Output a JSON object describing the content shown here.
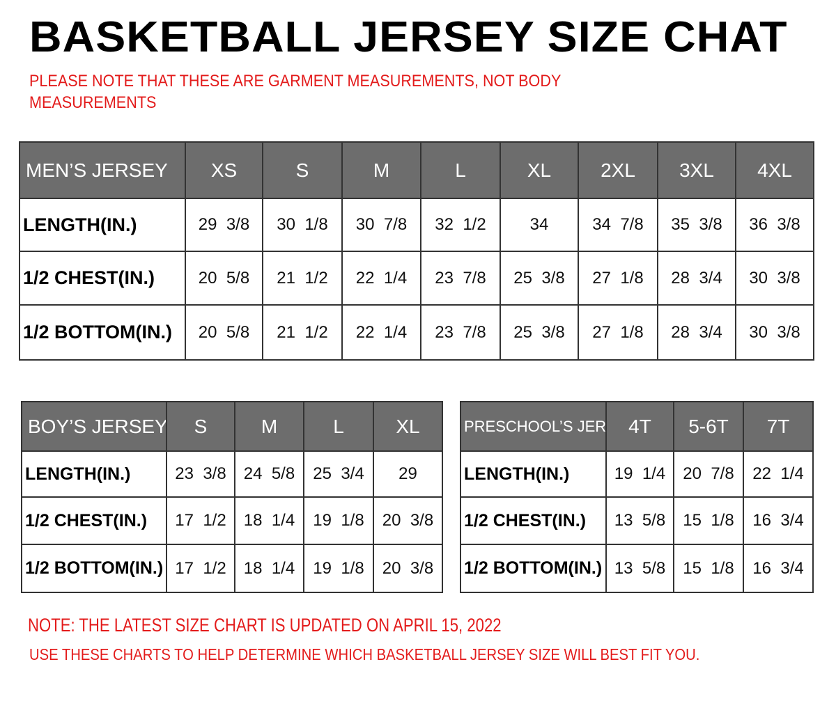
{
  "title": "BASKETBALL JERSEY SIZE CHAT",
  "header_note_line1": "PLEASE NOTE THAT THESE ARE GARMENT MEASUREMENTS, NOT BODY",
  "header_note_line2": "MEASUREMENTS",
  "colors": {
    "header_bg": "#6d6d6d",
    "note_red": "#e31b1b"
  },
  "tables": {
    "mens": {
      "label": "MEN’S JERSEY",
      "sizes": [
        "XS",
        "S",
        "M",
        "L",
        "XL",
        "2XL",
        "3XL",
        "4XL"
      ],
      "rows": [
        {
          "label": "LENGTH(IN.)",
          "values": [
            "29  3/8",
            "30  1/8",
            "30  7/8",
            "32  1/2",
            "34",
            "34  7/8",
            "35  3/8",
            "36  3/8"
          ]
        },
        {
          "label": "1/2  CHEST(IN.)",
          "values": [
            "20  5/8",
            "21  1/2",
            "22  1/4",
            "23  7/8",
            "25  3/8",
            "27  1/8",
            "28  3/4",
            "30  3/8"
          ]
        },
        {
          "label": "1/2  BOTTOM(IN.)",
          "values": [
            "20  5/8",
            "21  1/2",
            "22  1/4",
            "23  7/8",
            "25  3/8",
            "27  1/8",
            "28  3/4",
            "30  3/8"
          ]
        }
      ]
    },
    "boys": {
      "label": "BOY’S JERSEY",
      "sizes": [
        "S",
        "M",
        "L",
        "XL"
      ],
      "rows": [
        {
          "label": "LENGTH(IN.)",
          "values": [
            "23  3/8",
            "24  5/8",
            "25  3/4",
            "29"
          ]
        },
        {
          "label": "1/2  CHEST(IN.)",
          "values": [
            "17  1/2",
            "18  1/4",
            "19  1/8",
            "20  3/8"
          ]
        },
        {
          "label": "1/2  BOTTOM(IN.)",
          "values": [
            "17  1/2",
            "18  1/4",
            "19  1/8",
            "20  3/8"
          ]
        }
      ]
    },
    "pre": {
      "label": "PRESCHOOL’S JERSEY",
      "sizes": [
        "4T",
        "5-6T",
        "7T"
      ],
      "rows": [
        {
          "label": "LENGTH(IN.)",
          "values": [
            "19  1/4",
            "20  7/8",
            "22  1/4"
          ]
        },
        {
          "label": "1/2  CHEST(IN.)",
          "values": [
            "13  5/8",
            "15  1/8",
            "16  3/4"
          ]
        },
        {
          "label": "1/2  BOTTOM(IN.)",
          "values": [
            "13  5/8",
            "15  1/8",
            "16  3/4"
          ]
        }
      ]
    }
  },
  "footer_note_line1": "NOTE: THE LATEST SIZE CHART IS UPDATED ON APRIL 15, 2022",
  "footer_note_line2": "USE THESE CHARTS TO HELP DETERMINE WHICH  BASKETBALL JERSEY  SIZE WILL BEST FIT YOU."
}
